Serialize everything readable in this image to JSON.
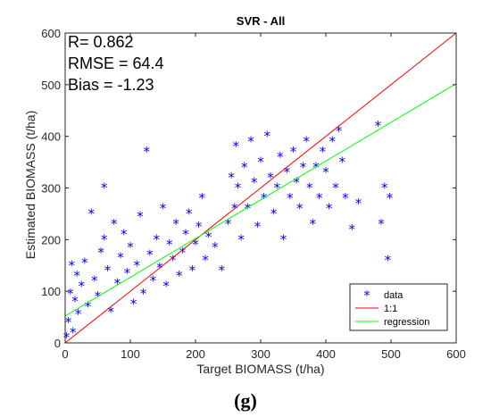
{
  "caption": "(g)",
  "chart_data": {
    "type": "scatter",
    "title": "SVR - All",
    "xlabel": "Target BIOMASS (t/ha)",
    "ylabel": "Estimated BIOMASS (t/ha)",
    "xlim": [
      0,
      600
    ],
    "ylim": [
      0,
      600
    ],
    "xticks": [
      "0",
      "100",
      "200",
      "300",
      "400",
      "500",
      "600"
    ],
    "yticks": [
      "0",
      "100",
      "200",
      "300",
      "400",
      "500",
      "600"
    ],
    "grid": false,
    "legend_position": "bottom-right",
    "stats": [
      "R= 0.862",
      "RMSE = 64.4",
      "Bias = -1.23"
    ],
    "series": [
      {
        "name": "data",
        "marker": "*",
        "color": "#0000ff",
        "points": [
          [
            2,
            10
          ],
          [
            5,
            40
          ],
          [
            8,
            95
          ],
          [
            10,
            150
          ],
          [
            12,
            20
          ],
          [
            15,
            80
          ],
          [
            18,
            130
          ],
          [
            20,
            55
          ],
          [
            25,
            110
          ],
          [
            30,
            155
          ],
          [
            35,
            70
          ],
          [
            40,
            250
          ],
          [
            45,
            120
          ],
          [
            50,
            90
          ],
          [
            55,
            175
          ],
          [
            60,
            200
          ],
          [
            60,
            300
          ],
          [
            65,
            140
          ],
          [
            70,
            60
          ],
          [
            75,
            230
          ],
          [
            80,
            115
          ],
          [
            85,
            165
          ],
          [
            90,
            210
          ],
          [
            95,
            135
          ],
          [
            100,
            185
          ],
          [
            105,
            75
          ],
          [
            110,
            150
          ],
          [
            115,
            245
          ],
          [
            120,
            95
          ],
          [
            125,
            370
          ],
          [
            130,
            170
          ],
          [
            135,
            120
          ],
          [
            140,
            200
          ],
          [
            145,
            145
          ],
          [
            150,
            260
          ],
          [
            155,
            110
          ],
          [
            160,
            190
          ],
          [
            165,
            160
          ],
          [
            170,
            230
          ],
          [
            175,
            130
          ],
          [
            180,
            175
          ],
          [
            185,
            210
          ],
          [
            190,
            250
          ],
          [
            195,
            140
          ],
          [
            200,
            190
          ],
          [
            205,
            225
          ],
          [
            210,
            280
          ],
          [
            215,
            160
          ],
          [
            220,
            205
          ],
          [
            230,
            185
          ],
          [
            240,
            140
          ],
          [
            250,
            230
          ],
          [
            255,
            320
          ],
          [
            260,
            260
          ],
          [
            262,
            380
          ],
          [
            265,
            300
          ],
          [
            270,
            200
          ],
          [
            275,
            340
          ],
          [
            280,
            260
          ],
          [
            285,
            390
          ],
          [
            290,
            310
          ],
          [
            295,
            225
          ],
          [
            300,
            350
          ],
          [
            305,
            280
          ],
          [
            310,
            400
          ],
          [
            315,
            320
          ],
          [
            320,
            250
          ],
          [
            325,
            300
          ],
          [
            330,
            360
          ],
          [
            335,
            200
          ],
          [
            340,
            330
          ],
          [
            345,
            280
          ],
          [
            350,
            370
          ],
          [
            355,
            310
          ],
          [
            360,
            260
          ],
          [
            365,
            340
          ],
          [
            370,
            390
          ],
          [
            375,
            300
          ],
          [
            380,
            230
          ],
          [
            385,
            340
          ],
          [
            390,
            280
          ],
          [
            395,
            370
          ],
          [
            400,
            330
          ],
          [
            405,
            260
          ],
          [
            410,
            390
          ],
          [
            415,
            300
          ],
          [
            420,
            410
          ],
          [
            425,
            350
          ],
          [
            430,
            280
          ],
          [
            440,
            220
          ],
          [
            450,
            270
          ],
          [
            480,
            420
          ],
          [
            485,
            230
          ],
          [
            490,
            300
          ],
          [
            495,
            160
          ],
          [
            498,
            280
          ]
        ]
      },
      {
        "name": "1:1",
        "color": "#ff0000",
        "line": [
          [
            0,
            0
          ],
          [
            600,
            600
          ]
        ]
      },
      {
        "name": "regression",
        "color": "#00ff00",
        "line": [
          [
            0,
            52
          ],
          [
            600,
            502
          ]
        ]
      }
    ]
  }
}
